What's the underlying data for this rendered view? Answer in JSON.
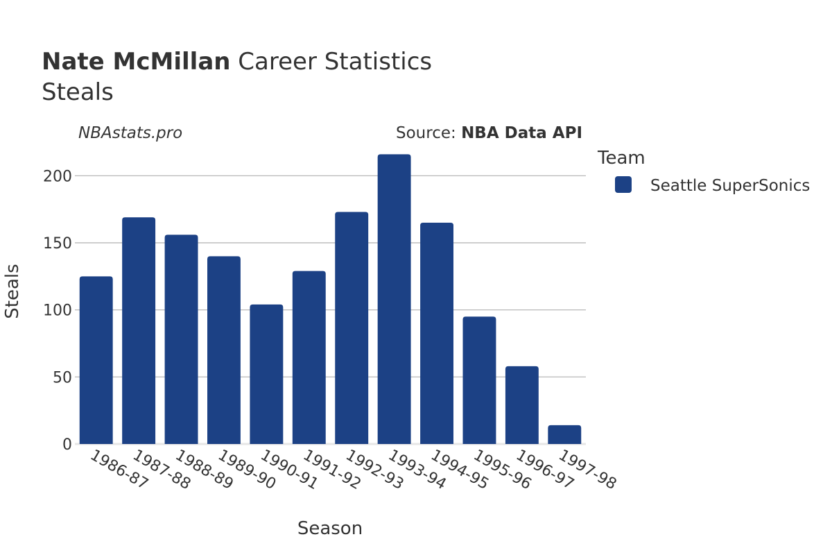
{
  "header": {
    "player": "Nate McMillan",
    "title_rest": "Career Statistics",
    "subtitle": "Steals"
  },
  "watermark": "NBAstats.pro",
  "source": {
    "prefix": "Source: ",
    "name": "NBA Data API"
  },
  "legend": {
    "title": "Team",
    "items": [
      {
        "label": "Seattle SuperSonics",
        "color": "#1c4185"
      }
    ]
  },
  "chart_data": {
    "type": "bar",
    "title": "Nate McMillan Career Statistics",
    "subtitle": "Steals",
    "xlabel": "Season",
    "ylabel": "Steals",
    "categories": [
      "1986-87",
      "1987-88",
      "1988-89",
      "1989-90",
      "1990-91",
      "1991-92",
      "1992-93",
      "1993-94",
      "1994-95",
      "1995-96",
      "1996-97",
      "1997-98"
    ],
    "series": [
      {
        "name": "Seattle SuperSonics",
        "color": "#1c4185",
        "values": [
          125,
          169,
          156,
          140,
          104,
          129,
          173,
          216,
          165,
          95,
          58,
          14
        ]
      }
    ],
    "ylim": [
      0,
      225
    ],
    "yticks": [
      0,
      50,
      100,
      150,
      200
    ],
    "grid": true,
    "legend_position": "right"
  }
}
